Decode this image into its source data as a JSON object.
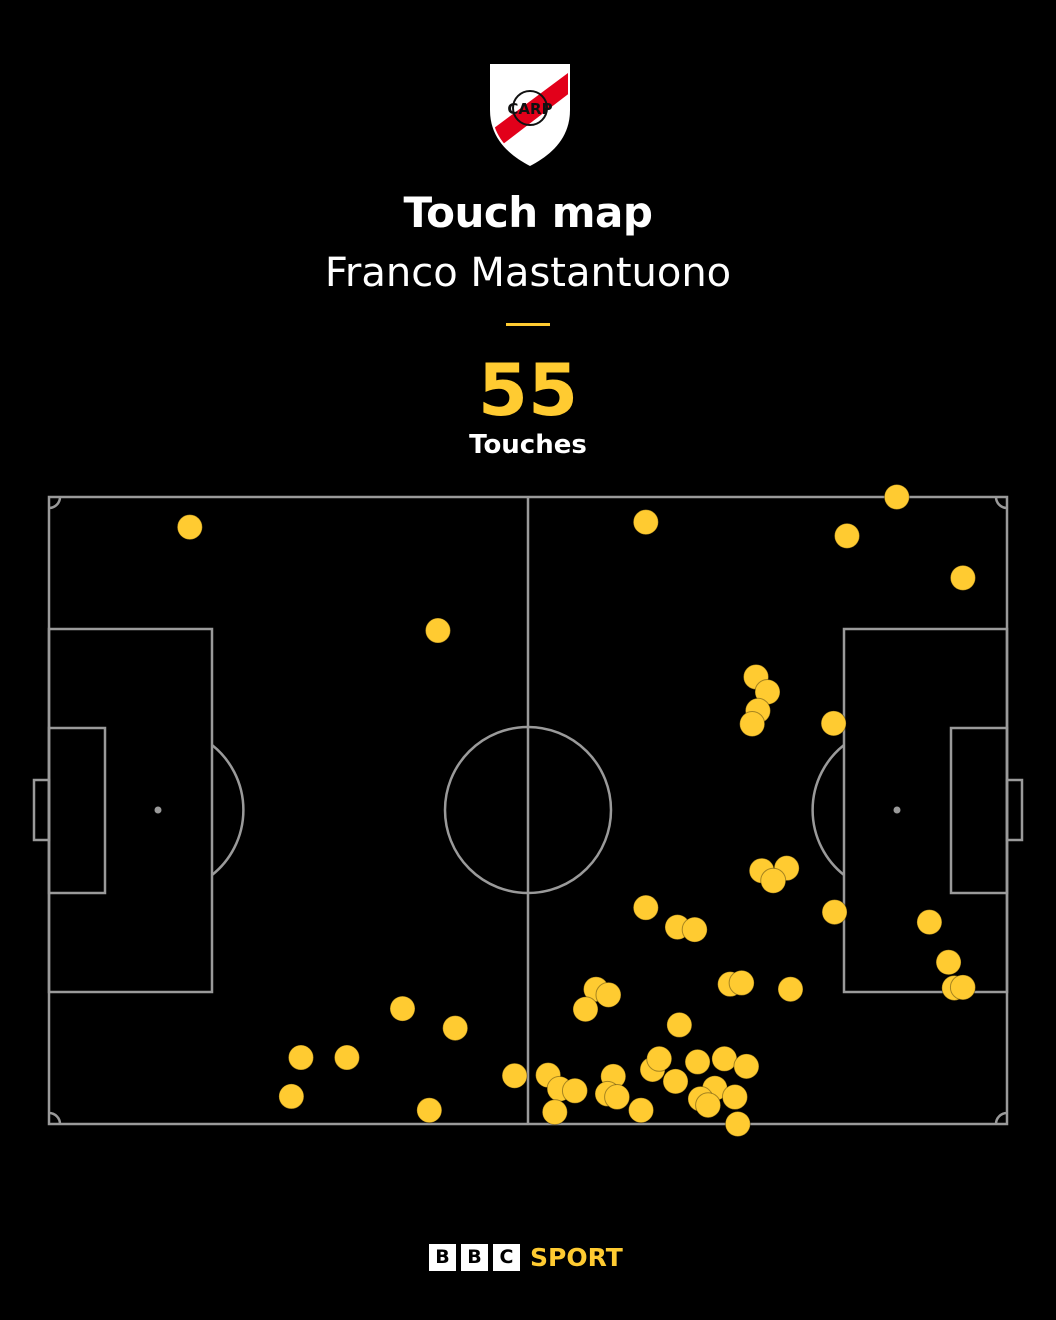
{
  "header": {
    "crest_letters": "CARP",
    "title": "Touch map",
    "player": "Franco Mastantuono",
    "touch_count": "55",
    "touch_label": "Touches"
  },
  "colors": {
    "background": "#000000",
    "accent": "#ffcb31",
    "pitch_lines": "#9a9a9a",
    "crest_red": "#e2001a"
  },
  "footer": {
    "bbc_letters": [
      "B",
      "B",
      "C"
    ],
    "sport_label": "SPORT"
  },
  "chart_data": {
    "type": "scatter",
    "title": "Touch map",
    "subtitle": "Franco Mastantuono",
    "xlim": [
      0,
      100
    ],
    "ylim": [
      0,
      100
    ],
    "pitch": true,
    "series": [
      {
        "name": "Touches",
        "color": "#ffcb31",
        "points": [
          [
            14.7,
            95.2
          ],
          [
            40.6,
            78.7
          ],
          [
            62.3,
            96.0
          ],
          [
            83.3,
            93.8
          ],
          [
            88.5,
            100.0
          ],
          [
            95.4,
            87.1
          ],
          [
            73.8,
            71.3
          ],
          [
            75.0,
            68.9
          ],
          [
            74.0,
            65.9
          ],
          [
            73.4,
            63.8
          ],
          [
            81.9,
            63.9
          ],
          [
            74.4,
            40.4
          ],
          [
            77.0,
            40.8
          ],
          [
            75.6,
            38.8
          ],
          [
            62.3,
            34.5
          ],
          [
            65.6,
            31.4
          ],
          [
            67.4,
            31.0
          ],
          [
            82.0,
            33.8
          ],
          [
            91.9,
            32.2
          ],
          [
            93.9,
            25.8
          ],
          [
            94.5,
            21.7
          ],
          [
            95.4,
            21.8
          ],
          [
            77.4,
            21.5
          ],
          [
            71.1,
            22.3
          ],
          [
            72.3,
            22.5
          ],
          [
            57.1,
            21.5
          ],
          [
            58.4,
            20.6
          ],
          [
            56.0,
            18.3
          ],
          [
            65.8,
            15.8
          ],
          [
            52.1,
            7.8
          ],
          [
            42.4,
            15.3
          ],
          [
            36.9,
            18.4
          ],
          [
            31.1,
            10.6
          ],
          [
            26.3,
            10.6
          ],
          [
            25.3,
            4.4
          ],
          [
            39.7,
            2.2
          ],
          [
            48.6,
            7.7
          ],
          [
            53.3,
            5.6
          ],
          [
            52.8,
            1.9
          ],
          [
            54.9,
            5.3
          ],
          [
            58.9,
            7.6
          ],
          [
            58.3,
            4.8
          ],
          [
            59.3,
            4.3
          ],
          [
            61.8,
            2.2
          ],
          [
            63.0,
            8.7
          ],
          [
            63.7,
            10.4
          ],
          [
            65.4,
            6.8
          ],
          [
            67.7,
            9.9
          ],
          [
            70.5,
            10.4
          ],
          [
            72.8,
            9.2
          ],
          [
            69.5,
            5.7
          ],
          [
            68.0,
            4.0
          ],
          [
            68.8,
            3.0
          ],
          [
            71.6,
            4.3
          ],
          [
            71.9,
            0.0
          ]
        ]
      }
    ]
  }
}
